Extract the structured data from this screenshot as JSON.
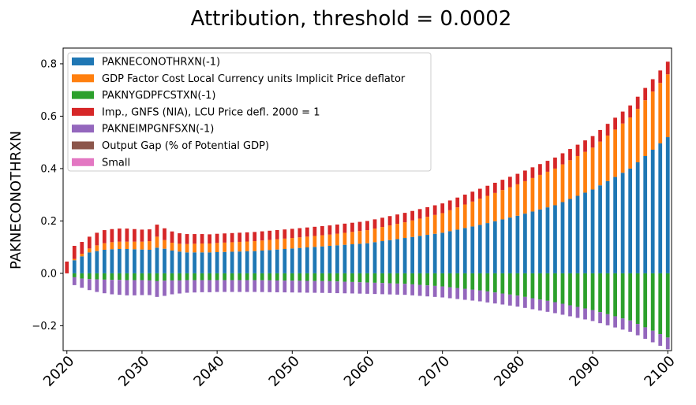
{
  "chart_data": {
    "type": "bar",
    "stacked": true,
    "title": "Attribution, threshold = 0.0002",
    "xlabel": "",
    "ylabel": "PAKNECONOTHRXN",
    "ylim": [
      -0.295,
      0.86
    ],
    "xlim": [
      2020,
      2100
    ],
    "x_tick_labels": [
      "2020",
      "2030",
      "2040",
      "2050",
      "2060",
      "2070",
      "2080",
      "2090",
      "2100"
    ],
    "y_ticks": [
      -0.2,
      0.0,
      0.2,
      0.4,
      0.6,
      0.8
    ],
    "y_tick_labels": [
      "−0.2",
      "0.0",
      "0.2",
      "0.4",
      "0.6",
      "0.8"
    ],
    "legend_position": "top-left",
    "grid": false,
    "series": [
      {
        "name": "PAKNECONOTHRXN(-1)",
        "color": "#1f77b4",
        "anchors": [
          [
            2020,
            0.0
          ],
          [
            2021,
            0.05
          ],
          [
            2022,
            0.065
          ],
          [
            2023,
            0.08
          ],
          [
            2024,
            0.085
          ],
          [
            2025,
            0.09
          ],
          [
            2026,
            0.092
          ],
          [
            2027,
            0.093
          ],
          [
            2028,
            0.093
          ],
          [
            2029,
            0.092
          ],
          [
            2030,
            0.091
          ],
          [
            2031,
            0.09
          ],
          [
            2032,
            0.098
          ],
          [
            2033,
            0.094
          ],
          [
            2034,
            0.087
          ],
          [
            2035,
            0.083
          ],
          [
            2036,
            0.08
          ],
          [
            2037,
            0.08
          ],
          [
            2038,
            0.08
          ],
          [
            2039,
            0.08
          ],
          [
            2040,
            0.081
          ],
          [
            2045,
            0.085
          ],
          [
            2050,
            0.095
          ],
          [
            2055,
            0.105
          ],
          [
            2060,
            0.115
          ],
          [
            2065,
            0.135
          ],
          [
            2070,
            0.155
          ],
          [
            2075,
            0.185
          ],
          [
            2080,
            0.22
          ],
          [
            2085,
            0.26
          ],
          [
            2090,
            0.32
          ],
          [
            2095,
            0.4
          ],
          [
            2100,
            0.52
          ]
        ]
      },
      {
        "name": "GDP Factor Cost Local Currency units Implicit Price deflator",
        "color": "#ff7f0e",
        "anchors": [
          [
            2020,
            0.0
          ],
          [
            2021,
            0.005
          ],
          [
            2022,
            0.01
          ],
          [
            2023,
            0.015
          ],
          [
            2024,
            0.022
          ],
          [
            2025,
            0.025
          ],
          [
            2026,
            0.027
          ],
          [
            2027,
            0.028
          ],
          [
            2028,
            0.028
          ],
          [
            2029,
            0.029
          ],
          [
            2030,
            0.03
          ],
          [
            2031,
            0.033
          ],
          [
            2032,
            0.042
          ],
          [
            2033,
            0.033
          ],
          [
            2034,
            0.03
          ],
          [
            2035,
            0.03
          ],
          [
            2036,
            0.032
          ],
          [
            2037,
            0.033
          ],
          [
            2038,
            0.034
          ],
          [
            2039,
            0.034
          ],
          [
            2040,
            0.035
          ],
          [
            2045,
            0.038
          ],
          [
            2050,
            0.04
          ],
          [
            2055,
            0.043
          ],
          [
            2060,
            0.05
          ],
          [
            2065,
            0.06
          ],
          [
            2070,
            0.075
          ],
          [
            2075,
            0.1
          ],
          [
            2080,
            0.12
          ],
          [
            2085,
            0.14
          ],
          [
            2090,
            0.16
          ],
          [
            2095,
            0.195
          ],
          [
            2100,
            0.24
          ]
        ]
      },
      {
        "name": "PAKNYGDPFCSTXN(-1)",
        "color": "#2ca02c",
        "anchors": [
          [
            2020,
            0.0
          ],
          [
            2021,
            -0.015
          ],
          [
            2022,
            -0.02
          ],
          [
            2023,
            -0.022
          ],
          [
            2024,
            -0.023
          ],
          [
            2025,
            -0.024
          ],
          [
            2026,
            -0.025
          ],
          [
            2027,
            -0.025
          ],
          [
            2028,
            -0.026
          ],
          [
            2029,
            -0.026
          ],
          [
            2030,
            -0.026
          ],
          [
            2031,
            -0.027
          ],
          [
            2032,
            -0.03
          ],
          [
            2033,
            -0.028
          ],
          [
            2034,
            -0.027
          ],
          [
            2035,
            -0.027
          ],
          [
            2036,
            -0.026
          ],
          [
            2037,
            -0.026
          ],
          [
            2038,
            -0.026
          ],
          [
            2039,
            -0.026
          ],
          [
            2040,
            -0.026
          ],
          [
            2045,
            -0.026
          ],
          [
            2050,
            -0.028
          ],
          [
            2055,
            -0.03
          ],
          [
            2060,
            -0.035
          ],
          [
            2065,
            -0.04
          ],
          [
            2070,
            -0.05
          ],
          [
            2075,
            -0.065
          ],
          [
            2080,
            -0.085
          ],
          [
            2085,
            -0.11
          ],
          [
            2090,
            -0.14
          ],
          [
            2095,
            -0.18
          ],
          [
            2100,
            -0.245
          ]
        ]
      },
      {
        "name": "Imp., GNFS (NIA), LCU Price defl. 2000 = 1",
        "color": "#d62728",
        "anchors": [
          [
            2020,
            0.045
          ],
          [
            2021,
            0.05
          ],
          [
            2022,
            0.045
          ],
          [
            2023,
            0.045
          ],
          [
            2024,
            0.048
          ],
          [
            2025,
            0.05
          ],
          [
            2026,
            0.05
          ],
          [
            2027,
            0.05
          ],
          [
            2028,
            0.05
          ],
          [
            2029,
            0.048
          ],
          [
            2030,
            0.046
          ],
          [
            2031,
            0.045
          ],
          [
            2032,
            0.046
          ],
          [
            2033,
            0.045
          ],
          [
            2034,
            0.043
          ],
          [
            2035,
            0.04
          ],
          [
            2036,
            0.038
          ],
          [
            2037,
            0.037
          ],
          [
            2038,
            0.036
          ],
          [
            2039,
            0.035
          ],
          [
            2040,
            0.035
          ],
          [
            2045,
            0.035
          ],
          [
            2050,
            0.035
          ],
          [
            2055,
            0.035
          ],
          [
            2060,
            0.035
          ],
          [
            2065,
            0.036
          ],
          [
            2070,
            0.037
          ],
          [
            2075,
            0.038
          ],
          [
            2080,
            0.04
          ],
          [
            2085,
            0.042
          ],
          [
            2090,
            0.044
          ],
          [
            2095,
            0.046
          ],
          [
            2100,
            0.048
          ]
        ]
      },
      {
        "name": "PAKNEIMPGNFSXN(-1)",
        "color": "#9467bd",
        "anchors": [
          [
            2020,
            0.0
          ],
          [
            2021,
            -0.03
          ],
          [
            2022,
            -0.035
          ],
          [
            2023,
            -0.042
          ],
          [
            2024,
            -0.048
          ],
          [
            2025,
            -0.052
          ],
          [
            2026,
            -0.055
          ],
          [
            2027,
            -0.057
          ],
          [
            2028,
            -0.058
          ],
          [
            2029,
            -0.058
          ],
          [
            2030,
            -0.057
          ],
          [
            2031,
            -0.056
          ],
          [
            2032,
            -0.06
          ],
          [
            2033,
            -0.058
          ],
          [
            2034,
            -0.053
          ],
          [
            2035,
            -0.05
          ],
          [
            2036,
            -0.048
          ],
          [
            2037,
            -0.047
          ],
          [
            2038,
            -0.046
          ],
          [
            2039,
            -0.046
          ],
          [
            2040,
            -0.045
          ],
          [
            2045,
            -0.045
          ],
          [
            2050,
            -0.045
          ],
          [
            2055,
            -0.045
          ],
          [
            2060,
            -0.043
          ],
          [
            2065,
            -0.042
          ],
          [
            2070,
            -0.042
          ],
          [
            2075,
            -0.042
          ],
          [
            2080,
            -0.042
          ],
          [
            2085,
            -0.042
          ],
          [
            2090,
            -0.042
          ],
          [
            2095,
            -0.043
          ],
          [
            2100,
            -0.045
          ]
        ]
      },
      {
        "name": "Output Gap (% of Potential GDP)",
        "color": "#8c564b",
        "anchors": [
          [
            2020,
            0.0
          ],
          [
            2100,
            0.0
          ]
        ]
      },
      {
        "name": "Small",
        "color": "#e377c2",
        "anchors": [
          [
            2020,
            0.0
          ],
          [
            2100,
            0.0
          ]
        ]
      }
    ]
  }
}
